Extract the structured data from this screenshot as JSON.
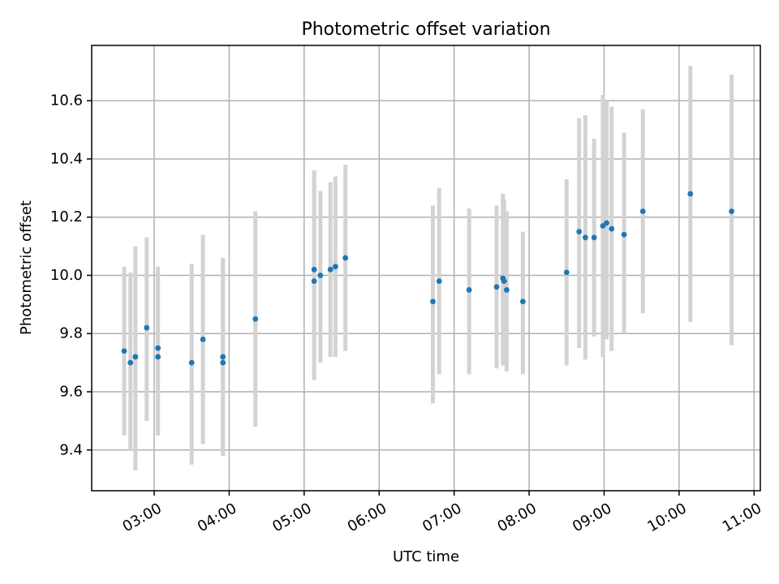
{
  "chart_data": {
    "type": "scatter",
    "title": "Photometric offset variation",
    "xlabel": "UTC time",
    "ylabel": "Photometric offset",
    "xlim": [
      "02:10",
      "11:05"
    ],
    "ylim": [
      9.26,
      10.79
    ],
    "grid": true,
    "x_ticks": [
      "03:00",
      "04:00",
      "05:00",
      "06:00",
      "07:00",
      "08:00",
      "09:00",
      "10:00",
      "11:00"
    ],
    "y_ticks": [
      9.4,
      9.6,
      9.8,
      10.0,
      10.2,
      10.4,
      10.6
    ],
    "y_tick_labels": [
      "9.4",
      "9.6",
      "9.8",
      "10.0",
      "10.2",
      "10.4",
      "10.6"
    ],
    "series": [
      {
        "marker_color": "#1f77b4",
        "errorbar_color": "#d3d3d3",
        "points": [
          {
            "x": "02:36",
            "y": 9.74,
            "ylo": 9.45,
            "yhi": 10.03
          },
          {
            "x": "02:41",
            "y": 9.7,
            "ylo": 9.4,
            "yhi": 10.01
          },
          {
            "x": "02:45",
            "y": 9.72,
            "ylo": 9.33,
            "yhi": 10.1
          },
          {
            "x": "02:54",
            "y": 9.82,
            "ylo": 9.5,
            "yhi": 10.13
          },
          {
            "x": "03:03",
            "y": 9.75,
            "ylo": 9.45,
            "yhi": 10.03
          },
          {
            "x": "03:03",
            "y": 9.72,
            "ylo": 9.45,
            "yhi": 10.03
          },
          {
            "x": "03:30",
            "y": 9.7,
            "ylo": 9.35,
            "yhi": 10.04
          },
          {
            "x": "03:39",
            "y": 9.78,
            "ylo": 9.42,
            "yhi": 10.14
          },
          {
            "x": "03:55",
            "y": 9.72,
            "ylo": 9.38,
            "yhi": 10.06
          },
          {
            "x": "03:55",
            "y": 9.7,
            "ylo": 9.38,
            "yhi": 10.06
          },
          {
            "x": "04:21",
            "y": 9.85,
            "ylo": 9.48,
            "yhi": 10.22
          },
          {
            "x": "05:08",
            "y": 10.02,
            "ylo": 9.64,
            "yhi": 10.36
          },
          {
            "x": "05:08",
            "y": 9.98,
            "ylo": 9.64,
            "yhi": 10.36
          },
          {
            "x": "05:13",
            "y": 10.0,
            "ylo": 9.7,
            "yhi": 10.29
          },
          {
            "x": "05:21",
            "y": 10.02,
            "ylo": 9.72,
            "yhi": 10.32
          },
          {
            "x": "05:25",
            "y": 10.03,
            "ylo": 9.72,
            "yhi": 10.34
          },
          {
            "x": "05:33",
            "y": 10.06,
            "ylo": 9.74,
            "yhi": 10.38
          },
          {
            "x": "06:43",
            "y": 9.91,
            "ylo": 9.56,
            "yhi": 10.24
          },
          {
            "x": "06:48",
            "y": 9.98,
            "ylo": 9.66,
            "yhi": 10.3
          },
          {
            "x": "07:12",
            "y": 9.95,
            "ylo": 9.66,
            "yhi": 10.23
          },
          {
            "x": "07:34",
            "y": 9.96,
            "ylo": 9.68,
            "yhi": 10.24
          },
          {
            "x": "07:39",
            "y": 9.99,
            "ylo": 9.69,
            "yhi": 10.28
          },
          {
            "x": "07:40",
            "y": 9.98,
            "ylo": 9.7,
            "yhi": 10.26
          },
          {
            "x": "07:42",
            "y": 9.95,
            "ylo": 9.67,
            "yhi": 10.22
          },
          {
            "x": "07:55",
            "y": 9.91,
            "ylo": 9.66,
            "yhi": 10.15
          },
          {
            "x": "08:30",
            "y": 10.01,
            "ylo": 9.69,
            "yhi": 10.33
          },
          {
            "x": "08:40",
            "y": 10.15,
            "ylo": 9.75,
            "yhi": 10.54
          },
          {
            "x": "08:45",
            "y": 10.13,
            "ylo": 9.71,
            "yhi": 10.55
          },
          {
            "x": "08:52",
            "y": 10.13,
            "ylo": 9.79,
            "yhi": 10.47
          },
          {
            "x": "08:59",
            "y": 10.17,
            "ylo": 9.72,
            "yhi": 10.62
          },
          {
            "x": "09:02",
            "y": 10.18,
            "ylo": 9.78,
            "yhi": 10.6
          },
          {
            "x": "09:06",
            "y": 10.16,
            "ylo": 9.74,
            "yhi": 10.58
          },
          {
            "x": "09:16",
            "y": 10.14,
            "ylo": 9.8,
            "yhi": 10.49
          },
          {
            "x": "09:31",
            "y": 10.22,
            "ylo": 9.87,
            "yhi": 10.57
          },
          {
            "x": "10:09",
            "y": 10.28,
            "ylo": 9.84,
            "yhi": 10.72
          },
          {
            "x": "10:42",
            "y": 10.22,
            "ylo": 9.76,
            "yhi": 10.69
          }
        ]
      }
    ]
  }
}
